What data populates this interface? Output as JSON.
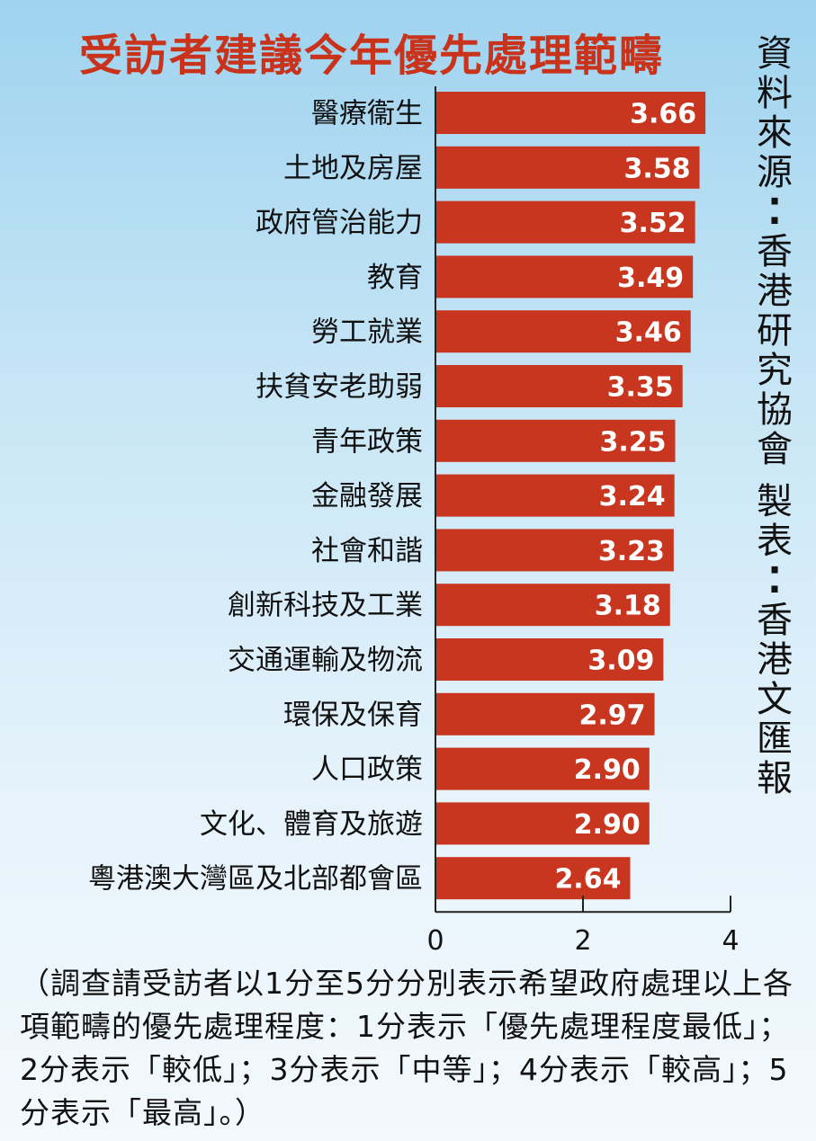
{
  "chart_data": {
    "type": "bar",
    "orientation": "horizontal",
    "title": "受訪者建議今年優先處理範疇",
    "categories": [
      "醫療衞生",
      "土地及房屋",
      "政府管治能力",
      "教育",
      "勞工就業",
      "扶貧安老助弱",
      "青年政策",
      "金融發展",
      "社會和諧",
      "創新科技及工業",
      "交通運輸及物流",
      "環保及保育",
      "人口政策",
      "文化、體育及旅遊",
      "粵港澳大灣區及北部都會區"
    ],
    "values": [
      3.66,
      3.58,
      3.52,
      3.49,
      3.46,
      3.35,
      3.25,
      3.24,
      3.23,
      3.18,
      3.09,
      2.97,
      2.9,
      2.9,
      2.64
    ],
    "value_labels": [
      "3.66",
      "3.58",
      "3.52",
      "3.49",
      "3.46",
      "3.35",
      "3.25",
      "3.24",
      "3.23",
      "3.18",
      "3.09",
      "2.97",
      "2.90",
      "2.90",
      "2.64"
    ],
    "xlim": [
      0,
      4
    ],
    "x_ticks": [
      "0",
      "2",
      "4"
    ],
    "bar_color": "#c9361f",
    "grid": false,
    "legend": "none"
  },
  "source_lines": [
    "資料來源：香港研究協會",
    "製表：香港文匯報"
  ],
  "note": "（調查請受訪者以1分至5分分別表示希望政府處理以上各項範疇的優先處理程度：1分表示「優先處理程度最低」；2分表示「較低」；3分表示「中等」；4分表示「較高」；5分表示「最高」。）",
  "colors": {
    "title": "#c9331c",
    "bar": "#c9361f",
    "text": "#111111"
  }
}
